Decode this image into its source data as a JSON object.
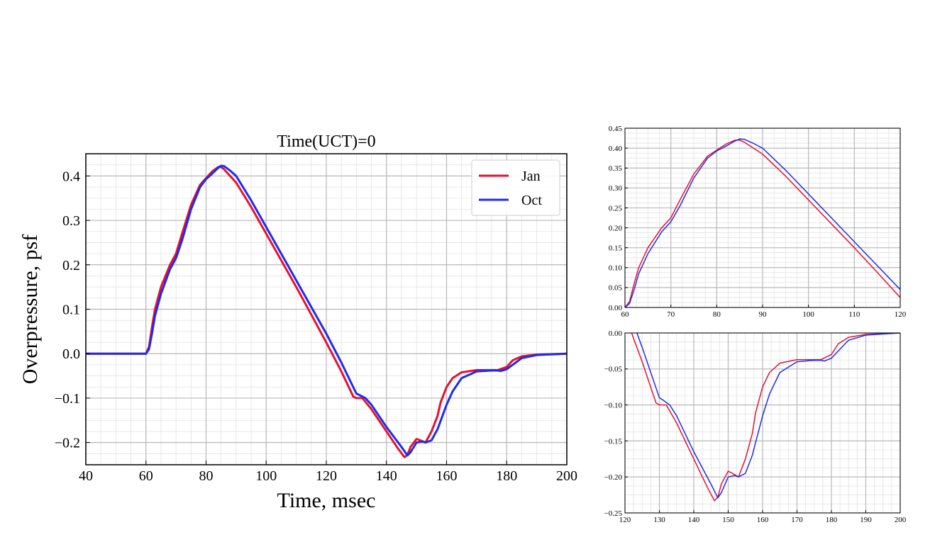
{
  "chart_data": [
    {
      "type": "line",
      "title": "Time(UCT)=0",
      "xlabel": "Time, msec",
      "ylabel": "Overpressure, psf",
      "xlim": [
        40,
        200
      ],
      "ylim": [
        -0.25,
        0.45
      ],
      "xticks": [
        40,
        60,
        80,
        100,
        120,
        140,
        160,
        180,
        200
      ],
      "xtick_labels": [
        "40",
        "60",
        "80",
        "100",
        "120",
        "140",
        "160",
        "180",
        "200"
      ],
      "yticks": [
        -0.2,
        -0.1,
        0.0,
        0.1,
        0.2,
        0.3,
        0.4
      ],
      "ytick_labels": [
        "−0.2",
        "−0.1",
        "0.0",
        "0.1",
        "0.2",
        "0.3",
        "0.4"
      ],
      "grid": true,
      "minor_grid": true,
      "legend": "top-right",
      "series": [
        {
          "name": "Jan",
          "color": "#e8102f",
          "x": [
            40,
            60,
            61,
            62,
            63,
            65,
            68,
            70,
            72,
            75,
            78,
            80,
            82,
            84,
            85,
            86,
            88,
            90,
            95,
            100,
            105,
            110,
            115,
            120,
            125,
            129,
            130,
            132,
            135,
            140,
            144,
            146,
            147,
            148,
            150,
            152,
            153,
            155,
            157,
            158,
            160,
            162,
            165,
            170,
            175,
            177,
            180,
            182,
            185,
            190,
            200
          ],
          "y": [
            0.0,
            0.0,
            0.015,
            0.06,
            0.1,
            0.15,
            0.2,
            0.225,
            0.27,
            0.335,
            0.38,
            0.395,
            0.41,
            0.42,
            0.42,
            0.415,
            0.4,
            0.385,
            0.33,
            0.27,
            0.21,
            0.15,
            0.088,
            0.025,
            -0.04,
            -0.097,
            -0.1,
            -0.1,
            -0.125,
            -0.175,
            -0.215,
            -0.233,
            -0.228,
            -0.21,
            -0.192,
            -0.197,
            -0.2,
            -0.175,
            -0.14,
            -0.11,
            -0.075,
            -0.055,
            -0.042,
            -0.037,
            -0.037,
            -0.037,
            -0.03,
            -0.015,
            -0.006,
            -0.002,
            0.0
          ]
        },
        {
          "name": "Oct",
          "color": "#1c2cf0",
          "x": [
            40,
            60,
            61,
            62,
            63,
            65,
            68,
            70,
            72,
            75,
            78,
            80,
            82,
            84,
            85,
            86,
            88,
            90,
            95,
            100,
            105,
            110,
            115,
            120,
            125,
            130,
            131,
            133,
            135,
            140,
            145,
            147,
            148,
            150,
            152,
            153,
            155,
            157,
            160,
            162,
            165,
            170,
            175,
            177,
            178,
            180,
            182,
            185,
            190,
            200
          ],
          "y": [
            0.0,
            0.0,
            0.01,
            0.045,
            0.085,
            0.135,
            0.19,
            0.215,
            0.255,
            0.325,
            0.375,
            0.393,
            0.405,
            0.418,
            0.423,
            0.422,
            0.412,
            0.4,
            0.345,
            0.285,
            0.225,
            0.165,
            0.105,
            0.045,
            -0.02,
            -0.09,
            -0.093,
            -0.1,
            -0.115,
            -0.165,
            -0.21,
            -0.229,
            -0.222,
            -0.2,
            -0.198,
            -0.2,
            -0.195,
            -0.17,
            -0.115,
            -0.085,
            -0.055,
            -0.04,
            -0.038,
            -0.038,
            -0.039,
            -0.035,
            -0.025,
            -0.01,
            -0.003,
            0.0
          ]
        }
      ]
    },
    {
      "type": "line",
      "title": "",
      "xlabel": "",
      "ylabel": "",
      "xlim": [
        60,
        120
      ],
      "ylim": [
        0.0,
        0.45
      ],
      "xticks": [
        60,
        70,
        80,
        90,
        100,
        110,
        120
      ],
      "xtick_labels": [
        "60",
        "70",
        "80",
        "90",
        "100",
        "110",
        "120"
      ],
      "yticks": [
        0.0,
        0.05,
        0.1,
        0.15,
        0.2,
        0.25,
        0.3,
        0.35,
        0.4,
        0.45
      ],
      "ytick_labels": [
        "0.00",
        "0.05",
        "0.10",
        "0.15",
        "0.20",
        "0.25",
        "0.30",
        "0.35",
        "0.40",
        "0.45"
      ],
      "grid": true,
      "minor_grid": true,
      "series_ref": [
        "Jan",
        "Oct"
      ]
    },
    {
      "type": "line",
      "title": "",
      "xlabel": "",
      "ylabel": "",
      "xlim": [
        120,
        200
      ],
      "ylim": [
        -0.25,
        0.0
      ],
      "xticks": [
        120,
        130,
        140,
        150,
        160,
        170,
        180,
        190,
        200
      ],
      "xtick_labels": [
        "120",
        "130",
        "140",
        "150",
        "160",
        "170",
        "180",
        "190",
        "200"
      ],
      "yticks": [
        -0.25,
        -0.2,
        -0.15,
        -0.1,
        -0.05,
        0.0
      ],
      "ytick_labels": [
        "−0.25",
        "−0.20",
        "−0.15",
        "−0.10",
        "−0.05",
        "0.00"
      ],
      "grid": true,
      "minor_grid": true,
      "series_ref": [
        "Jan",
        "Oct"
      ]
    }
  ]
}
